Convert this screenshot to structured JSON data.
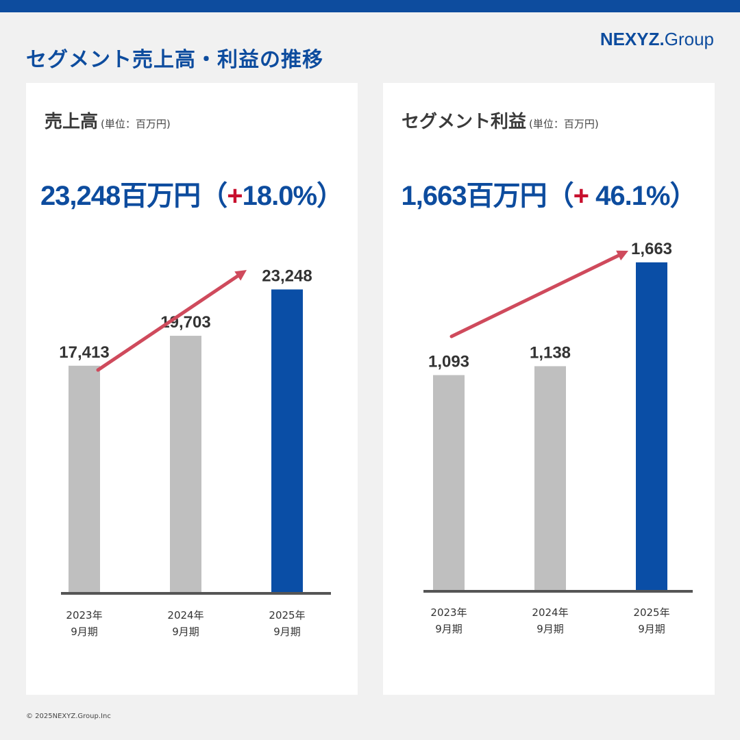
{
  "header": {
    "title": "セグメント売上高・利益の推移",
    "logo_main": "NEXYZ.",
    "logo_sub": "Group"
  },
  "colors": {
    "brand": "#0d4c9e",
    "bar_past": "#bfbfbf",
    "bar_current": "#0a4ea6",
    "arrow": "#cf4a5c",
    "plus": "#c8102e"
  },
  "panels": [
    {
      "heading": "売上高",
      "unit": "(単位：百万円)",
      "headline_value": "23,248百万円（",
      "headline_plus": "+",
      "headline_pct": "18.0%）"
    },
    {
      "heading": "セグメント利益",
      "unit": "(単位：百万円)",
      "headline_value": "1,663百万円（",
      "headline_plus": "+",
      "headline_pct": " 46.1%）"
    }
  ],
  "chart_data": [
    {
      "type": "bar",
      "categories": [
        [
          "2023年",
          "9月期"
        ],
        [
          "2024年",
          "9月期"
        ],
        [
          "2025年",
          "9月期"
        ]
      ],
      "values": [
        17413,
        19703,
        23248
      ],
      "value_labels": [
        "17,413",
        "19,703",
        "23,248"
      ],
      "ylim": [
        0,
        25000
      ],
      "highlight_last": true,
      "trend_arrow": true
    },
    {
      "type": "bar",
      "categories": [
        [
          "2023年",
          "9月期"
        ],
        [
          "2024年",
          "9月期"
        ],
        [
          "2025年",
          "9月期"
        ]
      ],
      "values": [
        1093,
        1138,
        1663
      ],
      "value_labels": [
        "1,093",
        "1,138",
        "1,663"
      ],
      "ylim": [
        0,
        1770
      ],
      "highlight_last": true,
      "trend_arrow": true
    }
  ],
  "footer": {
    "copyright": "© 2025NEXYZ.Group.Inc"
  }
}
